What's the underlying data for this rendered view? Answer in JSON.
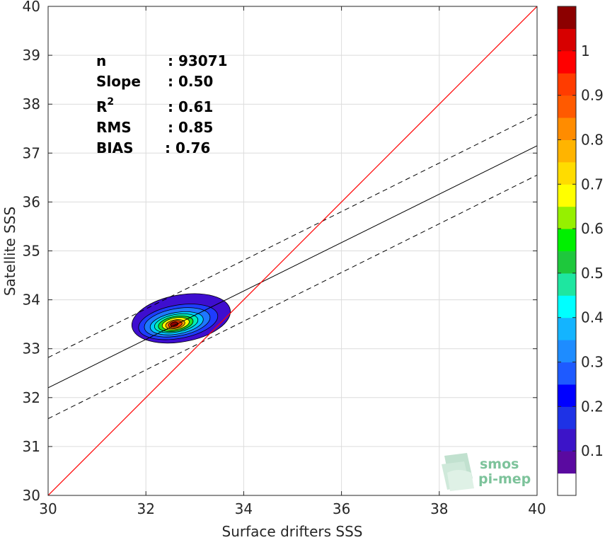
{
  "chart_data": {
    "type": "scatter",
    "subtype": "density contour",
    "xlabel": "Surface drifters SSS",
    "ylabel": "Satellite SSS",
    "xlim": [
      30,
      40
    ],
    "ylim": [
      30,
      40
    ],
    "x_ticks": [
      30,
      32,
      34,
      36,
      38,
      40
    ],
    "y_ticks": [
      30,
      31,
      32,
      33,
      34,
      35,
      36,
      37,
      38,
      39,
      40
    ],
    "grid": true,
    "stats": [
      {
        "label": "n",
        "value": ": 93071"
      },
      {
        "label": "Slope",
        "value": ": 0.50"
      },
      {
        "label": "R",
        "sup": "2",
        "value": ": 0.61"
      },
      {
        "label": "RMS",
        "value": ": 0.85"
      },
      {
        "label": "BIAS",
        "value": ": 0.76"
      }
    ],
    "lines": {
      "one_to_one": {
        "color": "#ff0000",
        "x": [
          30,
          40
        ],
        "y": [
          30,
          40
        ]
      },
      "fit": {
        "color": "#000000",
        "x": [
          30,
          40
        ],
        "y": [
          32.2,
          37.15
        ]
      },
      "fit_upper": {
        "color": "#000000",
        "dash": true,
        "x": [
          30,
          40
        ],
        "y": [
          32.82,
          37.79
        ]
      },
      "fit_lower": {
        "color": "#000000",
        "dash": true,
        "x": [
          30,
          40
        ],
        "y": [
          31.57,
          36.55
        ]
      }
    },
    "density": {
      "center": [
        32.6,
        33.5
      ],
      "levels": [
        {
          "level": 0.05,
          "color": "#3e0ecf",
          "rx": 1.02,
          "ry": 0.48,
          "cx": 32.72,
          "cy": 33.62,
          "rot": -10
        },
        {
          "level": 0.15,
          "color": "#1e3cff",
          "rx": 0.82,
          "ry": 0.34,
          "cx": 32.66,
          "cy": 33.55,
          "rot": -10
        },
        {
          "level": 0.25,
          "color": "#1e78ff",
          "rx": 0.68,
          "ry": 0.28,
          "cx": 32.64,
          "cy": 33.54,
          "rot": -10
        },
        {
          "level": 0.35,
          "color": "#00c8ff",
          "rx": 0.55,
          "ry": 0.22,
          "cx": 32.63,
          "cy": 33.52,
          "rot": -10
        },
        {
          "level": 0.45,
          "color": "#00f0b4",
          "rx": 0.45,
          "ry": 0.18,
          "cx": 32.62,
          "cy": 33.52,
          "rot": -10
        },
        {
          "level": 0.55,
          "color": "#22dd22",
          "rx": 0.36,
          "ry": 0.15,
          "cx": 32.61,
          "cy": 33.51,
          "rot": -10
        },
        {
          "level": 0.65,
          "color": "#ffff00",
          "rx": 0.28,
          "ry": 0.12,
          "cx": 32.61,
          "cy": 33.51,
          "rot": -10
        },
        {
          "level": 0.75,
          "color": "#ff9600",
          "rx": 0.2,
          "ry": 0.09,
          "cx": 32.6,
          "cy": 33.5,
          "rot": -10
        },
        {
          "level": 0.85,
          "color": "#ff3c00",
          "rx": 0.14,
          "ry": 0.07,
          "cx": 32.6,
          "cy": 33.5,
          "rot": -10
        },
        {
          "level": 0.95,
          "color": "#8c0000",
          "rx": 0.08,
          "ry": 0.045,
          "cx": 32.58,
          "cy": 33.5,
          "rot": -10
        }
      ]
    },
    "colorbar": {
      "ticks": [
        "0.1",
        "0.2",
        "0.3",
        "0.4",
        "0.5",
        "0.6",
        "0.7",
        "0.8",
        "0.9",
        "1"
      ],
      "colors": [
        "#ffffff",
        "#5a0aa0",
        "#3c14c8",
        "#1e32e6",
        "#0000ff",
        "#1e5aff",
        "#1e8cff",
        "#14b4ff",
        "#00ffff",
        "#1ee6a0",
        "#1ec83c",
        "#00f000",
        "#96f000",
        "#ffff00",
        "#ffdc00",
        "#ffb400",
        "#ff8c00",
        "#ff5a00",
        "#ff3c00",
        "#ff0000",
        "#d70000",
        "#8c0000"
      ]
    },
    "watermark": {
      "line1": "smos",
      "line2": "pi-mep"
    }
  }
}
